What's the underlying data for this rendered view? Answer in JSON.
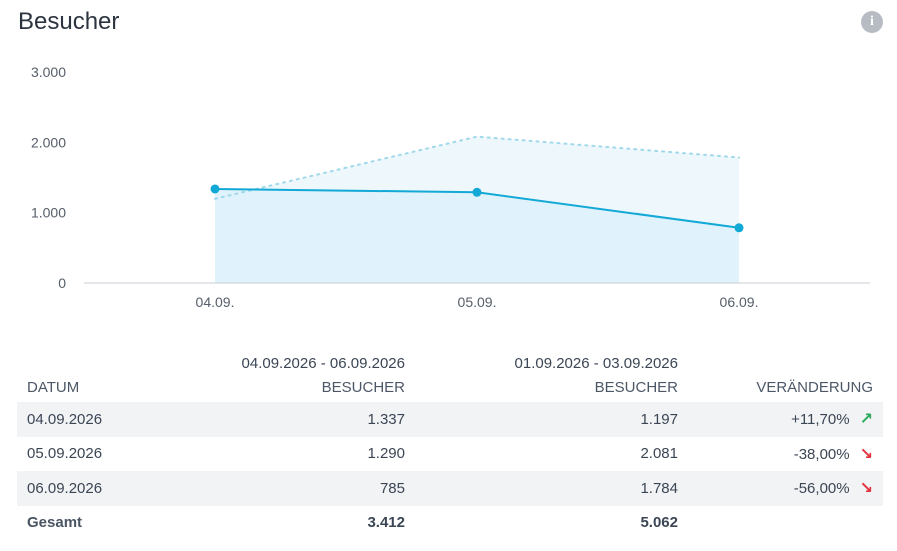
{
  "header": {
    "title": "Besucher",
    "info_icon": "info-icon"
  },
  "chart_data": {
    "type": "line",
    "categories": [
      "04.09.",
      "05.09.",
      "06.09."
    ],
    "series": [
      {
        "values": [
          1337,
          1290,
          785
        ],
        "style": "solid",
        "color": "#12a9d6"
      },
      {
        "values": [
          1197,
          2081,
          1784
        ],
        "style": "dotted",
        "color": "#9fd8ea"
      }
    ],
    "y_ticks": [
      "3.000",
      "2.000",
      "1.000",
      "0"
    ],
    "ylim": [
      0,
      3000
    ],
    "grid": false
  },
  "table": {
    "period_current": "04.09.2026 - 06.09.2026",
    "period_previous": "01.09.2026 - 03.09.2026",
    "headers": {
      "date": "DATUM",
      "visitors_current": "BESUCHER",
      "visitors_previous": "BESUCHER",
      "change": "VERÄNDERUNG"
    },
    "rows": [
      {
        "date": "04.09.2026",
        "current": "1.337",
        "previous": "1.197",
        "change": "+11,70%",
        "trend": "up"
      },
      {
        "date": "05.09.2026",
        "current": "1.290",
        "previous": "2.081",
        "change": "-38,00%",
        "trend": "down"
      },
      {
        "date": "06.09.2026",
        "current": "785",
        "previous": "1.784",
        "change": "-56,00%",
        "trend": "down"
      }
    ],
    "total": {
      "label": "Gesamt",
      "current": "3.412",
      "previous": "5.062"
    }
  },
  "colors": {
    "up": "#2eaa5c",
    "down": "#e2343f",
    "line": "#12a9d6",
    "area": "#e0f2fb",
    "area_prev": "#eef8fc"
  }
}
